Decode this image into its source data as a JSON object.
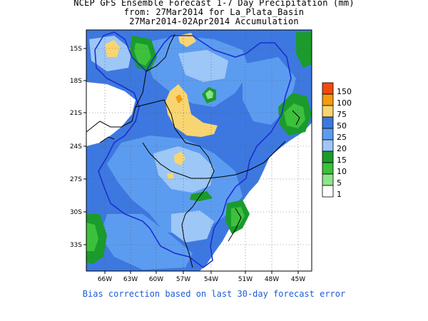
{
  "header": {
    "line1": "NCEP GFS Ensemble Forecast 1-7 Day Precipitation (mm)",
    "line2": "from: 27Mar2014   for La_Plata_Basin",
    "line3": "27Mar2014-02Apr2014 Accumulation"
  },
  "map": {
    "lat_labels": [
      "15S",
      "18S",
      "21S",
      "24S",
      "27S",
      "30S",
      "33S"
    ],
    "lon_labels": [
      "66W",
      "63W",
      "60W",
      "57W",
      "54W",
      "51W",
      "48W",
      "45W"
    ],
    "extent": {
      "lon_min": -67.5,
      "lon_max": -44,
      "lat_min": -36,
      "lat_max": -13
    },
    "colors": {
      "background_field": "#3d78e0",
      "moderate": "#5c9cf0",
      "light_blue": "#9dc7f7",
      "yellow": "#f8d571",
      "dark_green": "#1a9b2c",
      "medium_green": "#3cc13b",
      "light_green": "#8fe38a",
      "outline_basin": "#1c2fd2",
      "borders": "#000000"
    }
  },
  "legend": {
    "entries": [
      {
        "label": "150",
        "color": "#f24a10"
      },
      {
        "label": "100",
        "color": "#f59a11"
      },
      {
        "label": "75",
        "color": "#f8d571"
      },
      {
        "label": "50",
        "color": "#3d78e0"
      },
      {
        "label": "25",
        "color": "#5c9cf0"
      },
      {
        "label": "20",
        "color": "#9dc7f7"
      },
      {
        "label": "15",
        "color": "#1a9b2c"
      },
      {
        "label": "10",
        "color": "#3cc13b"
      },
      {
        "label": "5",
        "color": "#8fe38a"
      },
      {
        "label": "1",
        "color": "#ffffff"
      }
    ]
  },
  "footer": {
    "note": "Bias correction based on last 30-day forecast error"
  }
}
